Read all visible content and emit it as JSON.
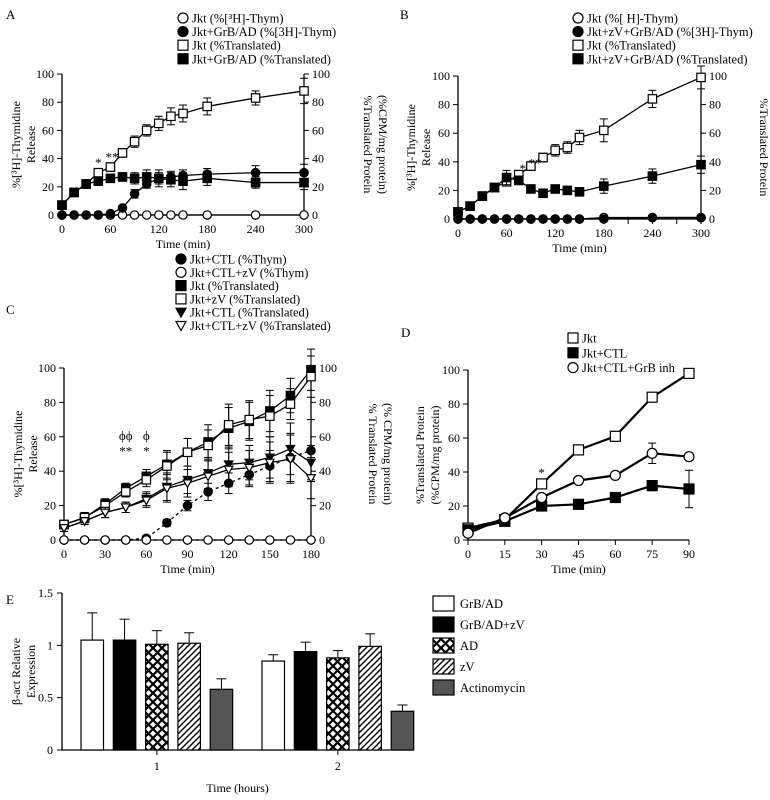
{
  "chart_data": [
    {
      "panel": "A",
      "type": "line",
      "xlabel": "Time (min)",
      "ylabel": "%[3H]-Thymidine Release",
      "ylabel_lines": [
        "%[³H]-Thymidine",
        "Release"
      ],
      "y2label_lines": [
        "%Translated Protein",
        "(%CPM/mg protein)"
      ],
      "xlim": [
        0,
        300
      ],
      "ylim": [
        0,
        100
      ],
      "xticks": [
        0,
        60,
        120,
        180,
        240,
        300
      ],
      "yticks": [
        0,
        20,
        40,
        60,
        80,
        100
      ],
      "legend": [
        "Jkt (%[³H]-Thym)",
        "Jkt+GrB/AD (%[3H]-Thym)",
        "Jkt (%Translated)",
        "Jkt+GrB/AD (%Translated)"
      ],
      "annotations": [
        {
          "text": "*",
          "x": 45,
          "y": 34
        },
        {
          "text": "**",
          "x": 62,
          "y": 38
        }
      ],
      "series": [
        {
          "x": [
            0,
            15,
            30,
            45,
            60,
            75,
            90,
            105,
            120,
            135,
            150,
            180,
            240,
            300
          ],
          "y": [
            0,
            0,
            0,
            0,
            0,
            0,
            0,
            0,
            0,
            0,
            0,
            0,
            0,
            0
          ],
          "err": [
            0,
            0,
            0,
            0,
            0,
            0,
            0,
            0,
            0,
            0,
            0,
            0,
            0,
            0
          ],
          "marker": "circle",
          "fill": "open",
          "dash": false
        },
        {
          "x": [
            0,
            15,
            30,
            45,
            60,
            75,
            90,
            105,
            120,
            135,
            150,
            180,
            240,
            300
          ],
          "y": [
            0,
            0,
            0,
            0,
            1,
            5,
            15,
            22,
            26,
            27,
            28,
            29,
            30,
            30
          ],
          "err": [
            0,
            0,
            0,
            0,
            0,
            1,
            3,
            3,
            4,
            4,
            4,
            4,
            5,
            6
          ],
          "marker": "circle",
          "fill": "solid",
          "dash": false
        },
        {
          "x": [
            0,
            15,
            30,
            45,
            60,
            75,
            90,
            105,
            120,
            135,
            150,
            180,
            240,
            300
          ],
          "y": [
            7,
            16,
            22,
            30,
            34,
            44,
            52,
            60,
            65,
            70,
            72,
            77,
            83,
            88
          ],
          "err": [
            1,
            2,
            2,
            2,
            3,
            3,
            4,
            4,
            5,
            6,
            6,
            6,
            5,
            9
          ],
          "marker": "square",
          "fill": "open",
          "dash": false
        },
        {
          "x": [
            0,
            15,
            30,
            45,
            60,
            75,
            90,
            105,
            120,
            135,
            150,
            180,
            240,
            300
          ],
          "y": [
            7,
            16,
            22,
            24,
            26,
            27,
            26,
            27,
            26,
            25,
            24,
            26,
            23,
            23
          ],
          "err": [
            1,
            2,
            2,
            2,
            2,
            3,
            4,
            5,
            6,
            5,
            6,
            5,
            4,
            5
          ],
          "marker": "square",
          "fill": "solid",
          "dash": false
        }
      ]
    },
    {
      "panel": "B",
      "type": "line",
      "xlabel": "Time (min)",
      "ylabel": "%[3H]-Thymidine Release",
      "ylabel_lines": [
        "%[³H]-Thymidine",
        "Release"
      ],
      "y2label_lines": [
        "%Translated Protein",
        "(%CPM/mg protein)"
      ],
      "xlim": [
        0,
        300
      ],
      "ylim": [
        0,
        100
      ],
      "xticks": [
        0,
        30,
        60,
        90,
        120,
        150,
        180,
        210,
        240,
        270,
        300
      ],
      "yticks": [
        0,
        20,
        40,
        60,
        80,
        100
      ],
      "legend": [
        "Jkt (%[ H]-Thym)",
        "Jkt+zV+GrB/AD (%[3H]-Thym)",
        "Jkt (%Translated)",
        "Jkt+zV+GrB/AD (%Translated)"
      ],
      "annotations": [
        {
          "text": "*",
          "x": 80,
          "y": 32
        },
        {
          "text": "**",
          "x": 95,
          "y": 36
        }
      ],
      "series": [
        {
          "x": [
            0,
            15,
            30,
            45,
            60,
            75,
            90,
            105,
            120,
            135,
            150,
            180,
            240,
            300
          ],
          "y": [
            0,
            0,
            0,
            0,
            0,
            0,
            0,
            0,
            0,
            0,
            0,
            1,
            1,
            1
          ],
          "err": [
            0,
            0,
            0,
            0,
            0,
            0,
            0,
            0,
            0,
            0,
            0,
            0,
            0,
            0
          ],
          "marker": "circle",
          "fill": "open",
          "dash": false
        },
        {
          "x": [
            0,
            15,
            30,
            45,
            60,
            75,
            90,
            105,
            120,
            135,
            150,
            180,
            240,
            300
          ],
          "y": [
            0,
            0,
            0,
            0,
            0,
            0,
            0,
            0,
            0,
            0,
            0,
            0,
            1,
            1
          ],
          "err": [
            0,
            0,
            0,
            0,
            0,
            0,
            0,
            0,
            0,
            0,
            0,
            0,
            0,
            0
          ],
          "marker": "circle",
          "fill": "solid",
          "dash": false
        },
        {
          "x": [
            0,
            15,
            30,
            45,
            60,
            75,
            90,
            105,
            120,
            135,
            150,
            180,
            240,
            300
          ],
          "y": [
            5,
            9,
            16,
            22,
            26,
            31,
            37,
            43,
            48,
            50,
            57,
            62,
            84,
            99
          ],
          "err": [
            1,
            1,
            2,
            2,
            2,
            3,
            3,
            3,
            4,
            4,
            5,
            8,
            6,
            8
          ],
          "marker": "square",
          "fill": "open",
          "dash": false
        },
        {
          "x": [
            0,
            15,
            30,
            45,
            60,
            75,
            90,
            105,
            120,
            135,
            150,
            180,
            240,
            300
          ],
          "y": [
            5,
            9,
            16,
            22,
            29,
            27,
            21,
            18,
            21,
            20,
            19,
            23,
            30,
            38
          ],
          "err": [
            1,
            1,
            2,
            2,
            5,
            3,
            2,
            2,
            2,
            2,
            2,
            5,
            5,
            6
          ],
          "marker": "square",
          "fill": "solid",
          "dash": false
        }
      ]
    },
    {
      "panel": "C",
      "type": "line",
      "xlabel": "Time (min)",
      "ylabel": "%[3H]-Thymidine Release",
      "ylabel_lines": [
        "%[³H]-Thymidine",
        "Release"
      ],
      "y2label_lines": [
        "% Translated Protein",
        "(% CPM/mg protein)"
      ],
      "xlim": [
        0,
        180
      ],
      "ylim": [
        0,
        100
      ],
      "xticks": [
        0,
        30,
        60,
        90,
        120,
        150,
        180
      ],
      "yticks": [
        0,
        20,
        40,
        60,
        80,
        100
      ],
      "legend": [
        "Jkt+CTL (%Thym)",
        "Jkt+CTL+zV (%Thym)",
        "Jkt (%Translated)",
        "Jkt+zV (%Translated)",
        "Jkt+CTL (%Translated)",
        "Jkt+CTL+zV (%Translated)"
      ],
      "annotations": [
        {
          "text": "ϕϕ",
          "x": 45,
          "y": 58
        },
        {
          "text": "**",
          "x": 45,
          "y": 49
        },
        {
          "text": "ϕ",
          "x": 60,
          "y": 58
        },
        {
          "text": "*",
          "x": 60,
          "y": 49
        }
      ],
      "series": [
        {
          "x": [
            0,
            15,
            30,
            45,
            60,
            75,
            90,
            105,
            120,
            135,
            150,
            165,
            180
          ],
          "y": [
            0,
            0,
            0,
            0,
            1,
            10,
            20,
            28,
            33,
            38,
            43,
            48,
            52
          ],
          "err": [
            0,
            0,
            0,
            0,
            1,
            2,
            3,
            5,
            6,
            7,
            9,
            14,
            18
          ],
          "marker": "circle",
          "fill": "solid",
          "dash": true
        },
        {
          "x": [
            0,
            15,
            30,
            45,
            60,
            75,
            90,
            105,
            120,
            135,
            150,
            165,
            180
          ],
          "y": [
            0,
            0,
            0,
            0,
            0,
            0,
            0,
            0,
            0,
            0,
            0,
            0,
            0
          ],
          "err": [
            0,
            0,
            0,
            0,
            0,
            0,
            0,
            0,
            0,
            0,
            0,
            0,
            0
          ],
          "marker": "circle",
          "fill": "open",
          "dash": true
        },
        {
          "x": [
            0,
            15,
            30,
            45,
            60,
            75,
            90,
            105,
            120,
            135,
            150,
            165,
            180
          ],
          "y": [
            9,
            13,
            21,
            30,
            37,
            44,
            51,
            57,
            65,
            69,
            75,
            84,
            99
          ],
          "err": [
            2,
            3,
            3,
            3,
            4,
            8,
            8,
            10,
            12,
            11,
            12,
            10,
            12
          ],
          "marker": "square",
          "fill": "solid",
          "dash": false
        },
        {
          "x": [
            0,
            15,
            30,
            45,
            60,
            75,
            90,
            105,
            120,
            135,
            150,
            165,
            180
          ],
          "y": [
            9,
            13,
            20,
            28,
            35,
            43,
            51,
            55,
            67,
            70,
            72,
            79,
            95
          ],
          "err": [
            2,
            3,
            3,
            3,
            4,
            8,
            8,
            9,
            12,
            11,
            12,
            9,
            12
          ],
          "marker": "square",
          "fill": "open",
          "dash": false
        },
        {
          "x": [
            0,
            15,
            30,
            45,
            60,
            75,
            90,
            105,
            120,
            135,
            150,
            165,
            180
          ],
          "y": [
            7,
            11,
            16,
            19,
            24,
            31,
            35,
            39,
            44,
            45,
            48,
            53,
            45
          ],
          "err": [
            2,
            2,
            3,
            3,
            4,
            8,
            8,
            9,
            10,
            10,
            12,
            15,
            10
          ],
          "marker": "tri-down",
          "fill": "solid",
          "dash": false
        },
        {
          "x": [
            0,
            15,
            30,
            45,
            60,
            75,
            90,
            105,
            120,
            135,
            150,
            165,
            180
          ],
          "y": [
            7,
            11,
            16,
            19,
            23,
            30,
            33,
            37,
            41,
            42,
            45,
            47,
            36
          ],
          "err": [
            2,
            2,
            3,
            3,
            4,
            8,
            8,
            9,
            10,
            10,
            12,
            14,
            12
          ],
          "marker": "tri-down",
          "fill": "open",
          "dash": false
        }
      ]
    },
    {
      "panel": "D",
      "type": "line",
      "xlabel": "Time (min)",
      "ylabel_lines": [
        "%Translated Protein",
        "(%CPM/mg protein)"
      ],
      "xlim": [
        0,
        90
      ],
      "ylim": [
        0,
        100
      ],
      "xticks": [
        0,
        15,
        30,
        45,
        60,
        75,
        90
      ],
      "yticks": [
        0,
        20,
        40,
        60,
        80,
        100
      ],
      "legend": [
        "Jkt",
        "Jkt+CTL",
        "Jkt+CTL+GrB inh"
      ],
      "annotations": [
        {
          "text": "*",
          "x": 30,
          "y": 37
        }
      ],
      "series": [
        {
          "name": "Jkt",
          "x": [
            0,
            15,
            30,
            45,
            60,
            75,
            90
          ],
          "y": [
            7,
            12,
            33,
            53,
            61,
            84,
            98
          ],
          "err": [
            1,
            1,
            2,
            1,
            1,
            1,
            1
          ],
          "marker": "square",
          "fill": "open"
        },
        {
          "name": "Jkt+CTL",
          "x": [
            0,
            15,
            30,
            45,
            60,
            75,
            90
          ],
          "y": [
            6,
            11,
            20,
            21,
            25,
            32,
            30
          ],
          "err": [
            1,
            1,
            1,
            1,
            1,
            3,
            11
          ],
          "marker": "square",
          "fill": "solid"
        },
        {
          "name": "Jkt+CTL+GrB inh",
          "x": [
            0,
            15,
            30,
            45,
            60,
            75,
            90
          ],
          "y": [
            4,
            13,
            25,
            35,
            38,
            51,
            49
          ],
          "err": [
            1,
            1,
            1,
            1,
            2,
            6,
            2
          ],
          "marker": "circle",
          "fill": "open"
        }
      ]
    },
    {
      "panel": "E",
      "type": "bar",
      "xlabel": "Time (hours)",
      "ylabel_lines": [
        "β-act Relative",
        "Expression"
      ],
      "categories": [
        "1",
        "2"
      ],
      "ylim": [
        0,
        1.5
      ],
      "yticks": [
        0,
        0.5,
        1,
        1.5
      ],
      "ytick_labels": [
        "0",
        "0.5",
        "1",
        "1.5"
      ],
      "legend": [
        "GrB/AD",
        "GrB/AD+zV",
        "AD",
        "zV",
        "Actinomycin"
      ],
      "series": [
        {
          "name": "GrB/AD",
          "values": [
            1.05,
            0.85
          ],
          "err": [
            0.26,
            0.06
          ],
          "pattern": "white"
        },
        {
          "name": "GrB/AD+zV",
          "values": [
            1.05,
            0.94
          ],
          "err": [
            0.2,
            0.09
          ],
          "pattern": "black"
        },
        {
          "name": "AD",
          "values": [
            1.01,
            0.88
          ],
          "err": [
            0.13,
            0.07
          ],
          "pattern": "cross"
        },
        {
          "name": "zV",
          "values": [
            1.02,
            0.99
          ],
          "err": [
            0.1,
            0.12
          ],
          "pattern": "diag"
        },
        {
          "name": "Actinomycin",
          "values": [
            0.58,
            0.37
          ],
          "err": [
            0.1,
            0.06
          ],
          "pattern": "gray"
        }
      ]
    }
  ]
}
